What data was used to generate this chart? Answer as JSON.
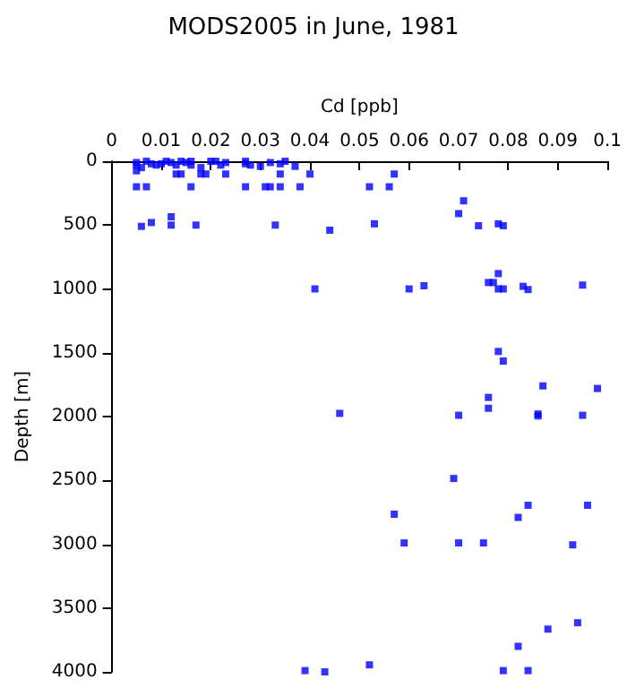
{
  "chart_data": {
    "type": "scatter",
    "title": "MODS2005 in June, 1981",
    "xlabel": "Cd [ppb]",
    "ylabel": "Depth [m]",
    "xlim": [
      0,
      0.1
    ],
    "xticks": [
      0,
      0.01,
      0.02,
      0.03,
      0.04,
      0.05,
      0.06,
      0.07,
      0.08,
      0.09,
      0.1
    ],
    "ylim": [
      4000,
      0
    ],
    "yticks": [
      0,
      500,
      1000,
      1500,
      2000,
      2500,
      3000,
      3500,
      4000
    ],
    "grid": false,
    "marker": "square",
    "series": [
      {
        "color": "#0000ff",
        "x": [
          0.005,
          0.005,
          0.006,
          0.007,
          0.008,
          0.009,
          0.01,
          0.011,
          0.012,
          0.013,
          0.014,
          0.015,
          0.016,
          0.016,
          0.018,
          0.02,
          0.021,
          0.022,
          0.023,
          0.027,
          0.027,
          0.028,
          0.03,
          0.032,
          0.034,
          0.035,
          0.037,
          0.005,
          0.013,
          0.014,
          0.018,
          0.019,
          0.023,
          0.034,
          0.04,
          0.057,
          0.005,
          0.007,
          0.016,
          0.027,
          0.031,
          0.032,
          0.034,
          0.038,
          0.052,
          0.056,
          0.006,
          0.008,
          0.012,
          0.012,
          0.017,
          0.033,
          0.044,
          0.053,
          0.071,
          0.07,
          0.074,
          0.078,
          0.079,
          0.041,
          0.06,
          0.063,
          0.076,
          0.077,
          0.078,
          0.078,
          0.079,
          0.083,
          0.084,
          0.095,
          0.078,
          0.079,
          0.087,
          0.098,
          0.076,
          0.076,
          0.046,
          0.07,
          0.086,
          0.086,
          0.095,
          0.069,
          0.084,
          0.096,
          0.057,
          0.082,
          0.059,
          0.07,
          0.075,
          0.093,
          0.094,
          0.088,
          0.082,
          0.039,
          0.043,
          0.052,
          0.079,
          0.084
        ],
        "values": [
          10,
          30,
          50,
          0,
          20,
          30,
          20,
          0,
          10,
          30,
          0,
          10,
          0,
          30,
          50,
          0,
          0,
          30,
          10,
          0,
          20,
          30,
          40,
          10,
          20,
          0,
          40,
          75,
          100,
          100,
          100,
          100,
          100,
          100,
          100,
          100,
          200,
          200,
          200,
          200,
          200,
          200,
          200,
          200,
          200,
          200,
          510,
          480,
          435,
          500,
          500,
          500,
          540,
          490,
          310,
          410,
          505,
          490,
          505,
          1000,
          1000,
          975,
          950,
          950,
          880,
          1000,
          1000,
          980,
          1005,
          970,
          1490,
          1565,
          1760,
          1780,
          1850,
          1935,
          1975,
          1990,
          1980,
          1995,
          1990,
          2485,
          2695,
          2695,
          2765,
          2790,
          2990,
          2990,
          2990,
          3005,
          3615,
          3665,
          3800,
          3990,
          4000,
          3945,
          3990,
          3990
        ]
      }
    ]
  }
}
